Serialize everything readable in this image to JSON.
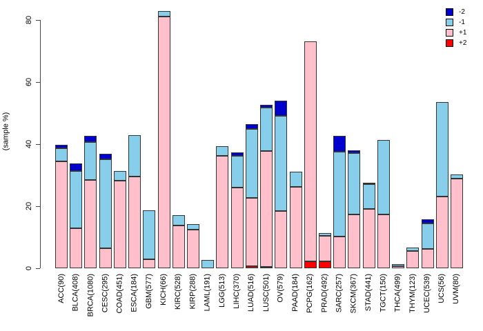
{
  "chart_data": {
    "type": "bar",
    "stacked": true,
    "title": "",
    "xlabel": "",
    "ylabel": "(sample %)",
    "ylim": [
      0,
      80
    ],
    "yticks": [
      0,
      20,
      40,
      60,
      80
    ],
    "grid": false,
    "legend_position": "top-right",
    "bar_border_color": "#333333",
    "categories": [
      "ACC(90)",
      "BLCA(408)",
      "BRCA(1080)",
      "CESC(295)",
      "COAD(451)",
      "ESCA(184)",
      "GBM(577)",
      "KICH(66)",
      "KIRC(528)",
      "KIRP(288)",
      "LAML(191)",
      "LGG(513)",
      "LIHC(370)",
      "LUAD(516)",
      "LUSC(501)",
      "OV(579)",
      "PAAD(184)",
      "PCPG(162)",
      "PRAD(492)",
      "SARC(257)",
      "SKCM(367)",
      "STAD(441)",
      "TGCT(150)",
      "THCA(499)",
      "THYM(123)",
      "UCEC(539)",
      "UCS(56)",
      "UVM(80)"
    ],
    "series": [
      {
        "name": "-2",
        "color": "#0000CD",
        "values": [
          1.1,
          2.4,
          2.0,
          1.8,
          0,
          0,
          0,
          0,
          0,
          0,
          0,
          0,
          1.1,
          1.5,
          0.8,
          4.9,
          0,
          0,
          0,
          5.0,
          1.0,
          0.5,
          0,
          0,
          0,
          1.3,
          0,
          0
        ]
      },
      {
        "name": "-1",
        "color": "#87CEEB",
        "values": [
          4.2,
          18.4,
          12.3,
          28.6,
          3.0,
          13.4,
          15.6,
          1.8,
          3.4,
          1.9,
          2.6,
          3.0,
          10.3,
          22.3,
          14.1,
          30.7,
          4.9,
          0,
          0.9,
          27.5,
          19.8,
          8.0,
          24.0,
          0.7,
          1.1,
          8.2,
          30.4,
          1.2
        ]
      },
      {
        "name": "+1",
        "color": "#FFC0CB",
        "values": [
          34.6,
          13.0,
          28.5,
          6.5,
          28.3,
          29.5,
          3.0,
          81.3,
          13.8,
          12.4,
          0,
          36.3,
          26.0,
          22.1,
          37.3,
          18.4,
          26.2,
          70.9,
          8.2,
          10.2,
          17.3,
          19.2,
          17.3,
          0.7,
          5.6,
          6.2,
          23.2,
          29.0
        ]
      },
      {
        "name": "+2",
        "color": "#FF0000",
        "values": [
          0,
          0,
          0,
          0,
          0,
          0,
          0,
          0,
          0,
          0,
          0,
          0,
          0,
          0.6,
          0.5,
          0,
          0,
          2.2,
          2.2,
          0,
          0,
          0,
          0,
          0,
          0,
          0,
          0,
          0
        ]
      }
    ],
    "stack_order_bottom_to_top": [
      "+2",
      "+1",
      "-1",
      "-2"
    ]
  }
}
